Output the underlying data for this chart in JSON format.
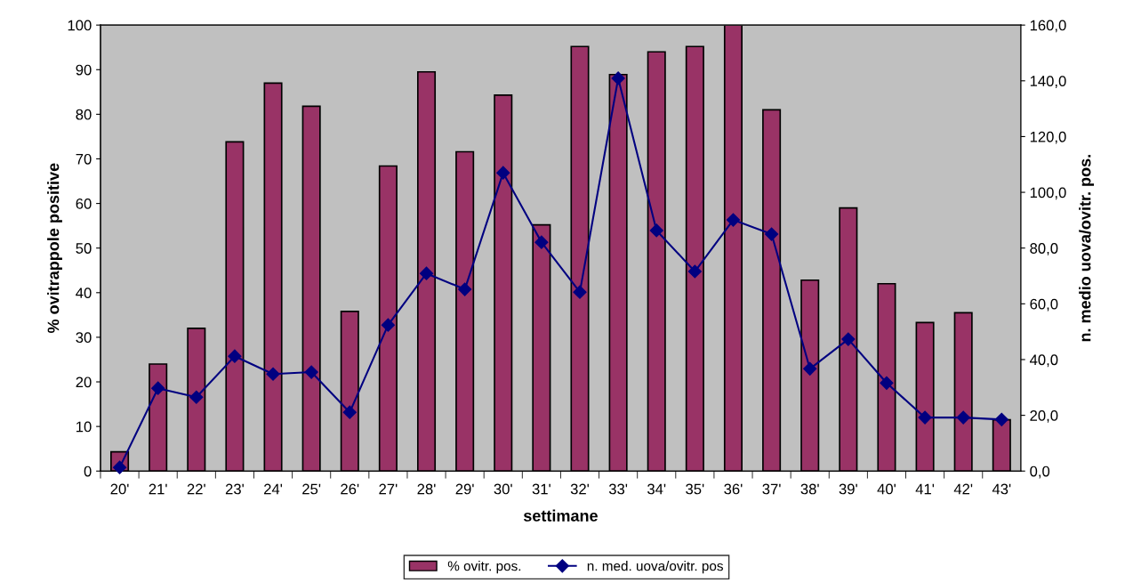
{
  "chart_data": {
    "type": "bar",
    "xlabel": "settimane",
    "ylabel": "% ovitrappole positive",
    "y2label": "n. medio uova/ovitr. pos.",
    "categories": [
      "20'",
      "21'",
      "22'",
      "23'",
      "24'",
      "25'",
      "26'",
      "27'",
      "28'",
      "29'",
      "30'",
      "31'",
      "32'",
      "33'",
      "34'",
      "35'",
      "36'",
      "37'",
      "38'",
      "39'",
      "40'",
      "41'",
      "42'",
      "43'"
    ],
    "series": [
      {
        "name": "% ovitr. pos.",
        "color": "#993366",
        "values": [
          4.3,
          24,
          32,
          73.8,
          87,
          81.8,
          35.8,
          68.4,
          89.5,
          71.6,
          84.3,
          55.2,
          95.2,
          88.9,
          94,
          95.2,
          100,
          81,
          42.8,
          59,
          42,
          33.3,
          35.5,
          11.5
        ]
      },
      {
        "name": "n. med. uova/ovitr. pos",
        "type": "line",
        "axis": "y2",
        "color": "#000080",
        "marker": "diamond",
        "values": [
          1.3,
          29.7,
          26.5,
          41.2,
          34.8,
          35.5,
          21.1,
          52.4,
          70.9,
          65.2,
          107,
          82.1,
          64.2,
          140.9,
          86.3,
          71.6,
          90.1,
          85,
          36.7,
          47.3,
          31.6,
          19.2,
          19.2,
          18.5
        ]
      }
    ],
    "ylim": [
      0,
      100
    ],
    "yticks": [
      0,
      10,
      20,
      30,
      40,
      50,
      60,
      70,
      80,
      90,
      100
    ],
    "y2lim": [
      0,
      160
    ],
    "y2ticks": [
      {
        "value": 0,
        "label": "0,0"
      },
      {
        "value": 20,
        "label": "20,0"
      },
      {
        "value": 40,
        "label": "40,0"
      },
      {
        "value": 60,
        "label": "60,0"
      },
      {
        "value": 80,
        "label": "80,0"
      },
      {
        "value": 100,
        "label": "100,0"
      },
      {
        "value": 120,
        "label": "120,0"
      },
      {
        "value": 140,
        "label": "140,0"
      },
      {
        "value": 160,
        "label": "160,0"
      }
    ],
    "grid": false,
    "legend": "bottom"
  }
}
